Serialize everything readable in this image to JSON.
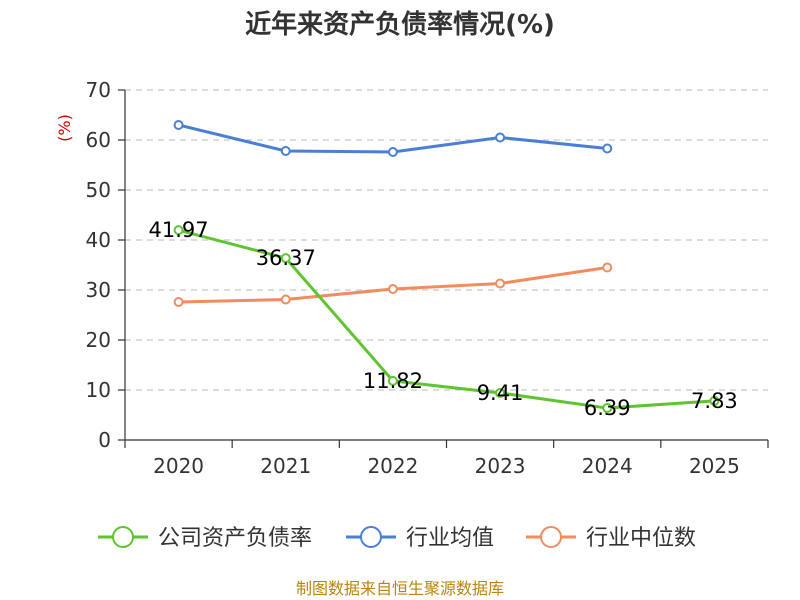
{
  "chart_data": {
    "type": "line",
    "title": "近年来资产负债率情况(%)",
    "ylabel": "(%)",
    "categories": [
      "2020",
      "2021",
      "2022",
      "2023",
      "2024",
      "2025"
    ],
    "ylim": [
      0,
      70
    ],
    "yticks": [
      "0",
      "10",
      "20",
      "30",
      "40",
      "50",
      "60",
      "70"
    ],
    "grid": true,
    "legend_position": "bottom",
    "series": [
      {
        "name": "公司资产负债率",
        "color": "#5ec42f",
        "values": [
          41.97,
          36.37,
          11.82,
          9.41,
          6.39,
          7.83
        ],
        "labels": [
          "41.97",
          "36.37",
          "11.82",
          "9.41",
          "6.39",
          "7.83"
        ]
      },
      {
        "name": "行业均值",
        "color": "#4a7fd6",
        "values": [
          63.0,
          57.8,
          57.6,
          60.5,
          58.3,
          null
        ]
      },
      {
        "name": "行业中位数",
        "color": "#f28c5e",
        "values": [
          27.6,
          28.1,
          30.2,
          31.3,
          34.5,
          null
        ]
      }
    ]
  },
  "source": "制图数据来自恒生聚源数据库"
}
